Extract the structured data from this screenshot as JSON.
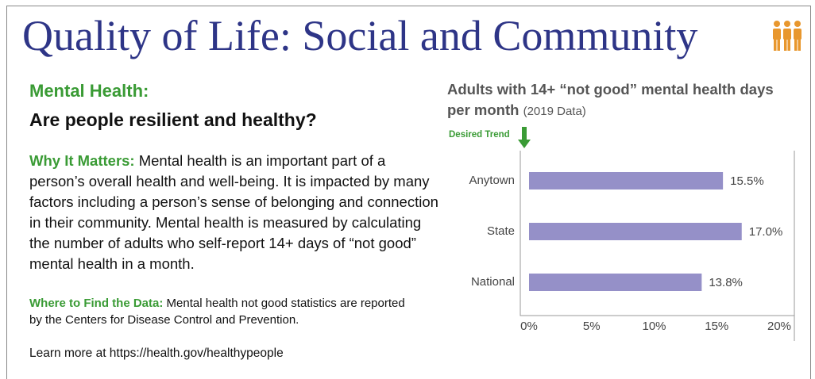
{
  "header": {
    "title": "Quality of Life: Social and Community"
  },
  "intro": {
    "heading": "Mental Health:",
    "question": "Are people resilient and healthy?"
  },
  "why": {
    "label": "Why It Matters:",
    "text": "Mental health is an important part of a person’s overall health and well-being.  It is impacted by many factors including a person’s sense of belonging and connection in their community.  Mental health is measured by calculating the number of adults who self-report 14+ days of “not good” mental health in a month."
  },
  "where": {
    "label": "Where to Find the Data:",
    "text": "Mental health not good statistics are reported by the Centers for Disease Control and Prevention."
  },
  "learn_more": "Learn more at https://health.gov/healthypeople",
  "chart_data": {
    "type": "bar",
    "orientation": "horizontal",
    "title": "Adults with 14+ “not good” mental health days per month",
    "subtitle": "(2019 Data)",
    "annotation": "Desired Trend",
    "categories": [
      "Anytown",
      "State",
      "National"
    ],
    "values": [
      15.5,
      17.0,
      13.8
    ],
    "value_labels": [
      "15.5%",
      "17.0%",
      "13.8%"
    ],
    "color": "#9590c8",
    "xlim": [
      0,
      20
    ],
    "xticks": [
      {
        "value": 0,
        "label": "0%"
      },
      {
        "value": 5,
        "label": "5%"
      },
      {
        "value": 10,
        "label": "10%"
      },
      {
        "value": 15,
        "label": "15%"
      },
      {
        "value": 20,
        "label": "20%"
      }
    ]
  }
}
